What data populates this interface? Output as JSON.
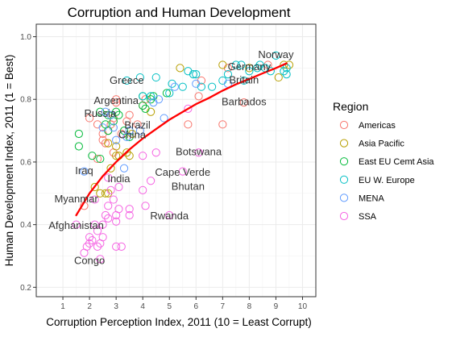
{
  "chart_data": {
    "type": "scatter",
    "title": "Corruption and Human Development",
    "xlabel": "Corruption Perception Index, 2011 (10 = Least Corrupt)",
    "ylabel": "Human Development Index, 2011 (1 = Best)",
    "xlim": [
      0.0,
      10.5
    ],
    "ylim": [
      0.17,
      1.04
    ],
    "xticks": [
      1,
      2,
      3,
      4,
      5,
      6,
      7,
      8,
      9,
      10
    ],
    "yticks": [
      0.2,
      0.4,
      0.6,
      0.8,
      1.0
    ],
    "ytick_labels": [
      "0.2",
      "0.4",
      "0.6",
      "0.8",
      "1.0"
    ],
    "grid": true,
    "legend": {
      "title": "Region",
      "placement": "right",
      "entries": [
        "Americas",
        "Asia Pacific",
        "East EU Cemt Asia",
        "EU W. Europe",
        "MENA",
        "SSA"
      ]
    },
    "colors": {
      "Americas": "#F8766D",
      "Asia Pacific": "#B79F00",
      "East EU Cemt Asia": "#00BA38",
      "EU W. Europe": "#00BFC4",
      "MENA": "#619CFF",
      "SSA": "#F564E3",
      "trend": "#FF0000"
    },
    "trend": {
      "type": "log-fit",
      "x": [
        1.5,
        2.0,
        2.5,
        3.0,
        3.5,
        4.0,
        4.5,
        5.0,
        5.5,
        6.0,
        6.5,
        7.0,
        7.5,
        8.0,
        8.5,
        9.0,
        9.4
      ],
      "y": [
        0.43,
        0.5,
        0.555,
        0.6,
        0.64,
        0.675,
        0.705,
        0.735,
        0.76,
        0.785,
        0.805,
        0.828,
        0.848,
        0.865,
        0.883,
        0.9,
        0.915
      ]
    },
    "labels": [
      {
        "text": "Norway",
        "x": 9.0,
        "y": 0.943
      },
      {
        "text": "Germany",
        "x": 8.0,
        "y": 0.905
      },
      {
        "text": "Britain",
        "x": 7.8,
        "y": 0.863
      },
      {
        "text": "Barbados",
        "x": 7.8,
        "y": 0.793
      },
      {
        "text": "Greece",
        "x": 3.4,
        "y": 0.861
      },
      {
        "text": "Argentina",
        "x": 3.0,
        "y": 0.797
      },
      {
        "text": "Russia",
        "x": 2.4,
        "y": 0.755
      },
      {
        "text": "Brazil",
        "x": 3.8,
        "y": 0.718
      },
      {
        "text": "China",
        "x": 3.6,
        "y": 0.687
      },
      {
        "text": "Botswana",
        "x": 6.1,
        "y": 0.633
      },
      {
        "text": "Iraq",
        "x": 1.8,
        "y": 0.573
      },
      {
        "text": "India",
        "x": 3.1,
        "y": 0.547
      },
      {
        "text": "Cape Verde",
        "x": 5.5,
        "y": 0.568
      },
      {
        "text": "Bhutan",
        "x": 5.7,
        "y": 0.522
      },
      {
        "text": "Myanmar",
        "x": 1.5,
        "y": 0.483
      },
      {
        "text": "Rwanda",
        "x": 5.0,
        "y": 0.429
      },
      {
        "text": "Afghanistan",
        "x": 1.5,
        "y": 0.398
      },
      {
        "text": "Congo",
        "x": 2.0,
        "y": 0.286
      }
    ],
    "series": [
      {
        "name": "Americas",
        "points": [
          [
            2.0,
            0.74
          ],
          [
            2.3,
            0.72
          ],
          [
            2.5,
            0.69
          ],
          [
            2.6,
            0.66
          ],
          [
            2.7,
            0.7
          ],
          [
            2.8,
            0.72
          ],
          [
            2.9,
            0.74
          ],
          [
            3.0,
            0.8
          ],
          [
            3.0,
            0.79
          ],
          [
            3.2,
            0.69
          ],
          [
            3.4,
            0.73
          ],
          [
            3.5,
            0.75
          ],
          [
            3.8,
            0.72
          ],
          [
            4.0,
            0.78
          ],
          [
            4.1,
            0.8
          ],
          [
            5.7,
            0.72
          ],
          [
            6.1,
            0.81
          ],
          [
            6.2,
            0.86
          ],
          [
            7.0,
            0.72
          ],
          [
            7.2,
            0.9
          ],
          [
            7.8,
            0.79
          ],
          [
            8.7,
            0.91
          ],
          [
            2.5,
            0.67
          ],
          [
            1.8,
            0.46
          ],
          [
            2.3,
            0.61
          ],
          [
            2.9,
            0.63
          ]
        ]
      },
      {
        "name": "Asia Pacific",
        "points": [
          [
            2.4,
            0.5
          ],
          [
            2.6,
            0.5
          ],
          [
            2.7,
            0.5
          ],
          [
            2.7,
            0.66
          ],
          [
            2.8,
            0.58
          ],
          [
            3.0,
            0.62
          ],
          [
            3.0,
            0.65
          ],
          [
            3.1,
            0.62
          ],
          [
            3.4,
            0.63
          ],
          [
            3.5,
            0.62
          ],
          [
            3.6,
            0.69
          ],
          [
            4.3,
            0.76
          ],
          [
            5.4,
            0.9
          ],
          [
            7.0,
            0.91
          ],
          [
            8.0,
            0.9
          ],
          [
            9.3,
            0.91
          ],
          [
            9.5,
            0.91
          ],
          [
            9.1,
            0.87
          ],
          [
            2.2,
            0.52
          ]
        ]
      },
      {
        "name": "East EU Cemt Asia",
        "points": [
          [
            1.6,
            0.69
          ],
          [
            1.6,
            0.65
          ],
          [
            2.1,
            0.62
          ],
          [
            2.4,
            0.76
          ],
          [
            2.6,
            0.72
          ],
          [
            2.4,
            0.61
          ],
          [
            2.7,
            0.7
          ],
          [
            2.9,
            0.73
          ],
          [
            3.0,
            0.76
          ],
          [
            3.1,
            0.75
          ],
          [
            3.3,
            0.7
          ],
          [
            3.5,
            0.68
          ],
          [
            4.0,
            0.78
          ],
          [
            4.3,
            0.8
          ],
          [
            4.0,
            0.81
          ],
          [
            4.1,
            0.77
          ],
          [
            4.4,
            0.81
          ],
          [
            4.9,
            0.82
          ],
          [
            2.7,
            0.75
          ]
        ]
      },
      {
        "name": "EU W. Europe",
        "points": [
          [
            3.4,
            0.86
          ],
          [
            3.9,
            0.87
          ],
          [
            4.0,
            0.81
          ],
          [
            4.3,
            0.81
          ],
          [
            4.5,
            0.87
          ],
          [
            5.0,
            0.82
          ],
          [
            5.1,
            0.85
          ],
          [
            5.5,
            0.84
          ],
          [
            5.7,
            0.89
          ],
          [
            5.9,
            0.88
          ],
          [
            6.0,
            0.88
          ],
          [
            6.2,
            0.84
          ],
          [
            6.6,
            0.84
          ],
          [
            7.0,
            0.86
          ],
          [
            7.2,
            0.88
          ],
          [
            7.5,
            0.91
          ],
          [
            7.8,
            0.86
          ],
          [
            8.0,
            0.89
          ],
          [
            8.3,
            0.9
          ],
          [
            8.6,
            0.9
          ],
          [
            8.8,
            0.89
          ],
          [
            9.0,
            0.94
          ],
          [
            9.3,
            0.89
          ],
          [
            9.4,
            0.88
          ],
          [
            9.4,
            0.9
          ],
          [
            7.7,
            0.91
          ],
          [
            8.4,
            0.91
          ]
        ]
      },
      {
        "name": "MENA",
        "points": [
          [
            1.8,
            0.57
          ],
          [
            2.5,
            0.71
          ],
          [
            2.6,
            0.76
          ],
          [
            2.9,
            0.71
          ],
          [
            3.0,
            0.67
          ],
          [
            3.3,
            0.58
          ],
          [
            3.4,
            0.68
          ],
          [
            3.5,
            0.7
          ],
          [
            3.9,
            0.7
          ],
          [
            4.4,
            0.79
          ],
          [
            4.6,
            0.8
          ],
          [
            4.8,
            0.74
          ],
          [
            5.2,
            0.84
          ],
          [
            6.0,
            0.85
          ],
          [
            7.2,
            0.85
          ],
          [
            2.8,
            0.75
          ]
        ]
      },
      {
        "name": "SSA",
        "points": [
          [
            1.5,
            0.4
          ],
          [
            1.8,
            0.31
          ],
          [
            2.0,
            0.34
          ],
          [
            2.0,
            0.36
          ],
          [
            2.1,
            0.35
          ],
          [
            2.2,
            0.4
          ],
          [
            2.3,
            0.33
          ],
          [
            2.3,
            0.38
          ],
          [
            2.4,
            0.29
          ],
          [
            2.4,
            0.34
          ],
          [
            2.5,
            0.36
          ],
          [
            2.5,
            0.4
          ],
          [
            2.6,
            0.43
          ],
          [
            2.7,
            0.42
          ],
          [
            2.7,
            0.46
          ],
          [
            2.9,
            0.48
          ],
          [
            3.0,
            0.43
          ],
          [
            3.0,
            0.41
          ],
          [
            3.1,
            0.45
          ],
          [
            3.0,
            0.33
          ],
          [
            3.2,
            0.33
          ],
          [
            3.5,
            0.45
          ],
          [
            3.5,
            0.43
          ],
          [
            4.0,
            0.51
          ],
          [
            4.1,
            0.46
          ],
          [
            4.3,
            0.54
          ],
          [
            4.0,
            0.62
          ],
          [
            4.5,
            0.63
          ],
          [
            5.0,
            0.43
          ],
          [
            5.5,
            0.57
          ],
          [
            5.7,
            0.77
          ],
          [
            6.1,
            0.63
          ],
          [
            2.8,
            0.51
          ],
          [
            3.1,
            0.52
          ],
          [
            2.2,
            0.48
          ],
          [
            1.9,
            0.33
          ],
          [
            2.7,
            0.55
          ]
        ]
      }
    ]
  }
}
